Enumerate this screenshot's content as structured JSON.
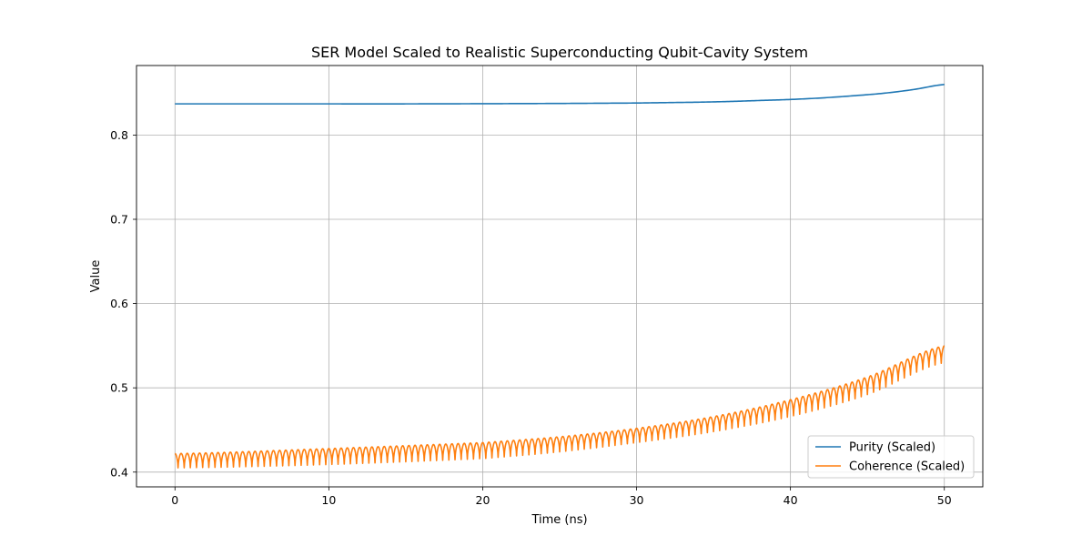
{
  "chart_data": {
    "type": "line",
    "title": "SER Model Scaled to Realistic Superconducting Qubit-Cavity System",
    "xlabel": "Time (ns)",
    "ylabel": "Value",
    "xlim": [
      -2.5,
      52.5
    ],
    "ylim": [
      0.3825,
      0.8825
    ],
    "xticks": [
      0,
      10,
      20,
      30,
      40,
      50
    ],
    "yticks": [
      0.4,
      0.5,
      0.6,
      0.7,
      0.8
    ],
    "grid": true,
    "legend_position": "lower-right",
    "series": [
      {
        "name": "Purity (Scaled)",
        "color": "#1f77b4",
        "x": [
          0,
          5,
          10,
          15,
          20,
          25,
          30,
          32,
          34,
          36,
          38,
          40,
          42,
          44,
          46,
          48,
          50
        ],
        "y": [
          0.837,
          0.837,
          0.837,
          0.837,
          0.8372,
          0.8375,
          0.838,
          0.8385,
          0.839,
          0.8398,
          0.841,
          0.8422,
          0.844,
          0.8465,
          0.8495,
          0.854,
          0.86
        ]
      },
      {
        "name": "Coherence (Scaled)",
        "color": "#ff7f0e",
        "oscillation": {
          "period_ns": 0.8,
          "upper_envelope": {
            "x": [
              0,
              10,
              20,
              25,
              30,
              35,
              40,
              45,
              50
            ],
            "y": [
              0.422,
              0.428,
              0.435,
              0.442,
              0.452,
              0.466,
              0.486,
              0.513,
              0.55
            ]
          },
          "lower_envelope": {
            "x": [
              0,
              10,
              20,
              25,
              30,
              35,
              40,
              45,
              50
            ],
            "y": [
              0.405,
              0.409,
              0.416,
              0.424,
              0.435,
              0.448,
              0.466,
              0.492,
              0.53
            ]
          }
        }
      }
    ]
  }
}
